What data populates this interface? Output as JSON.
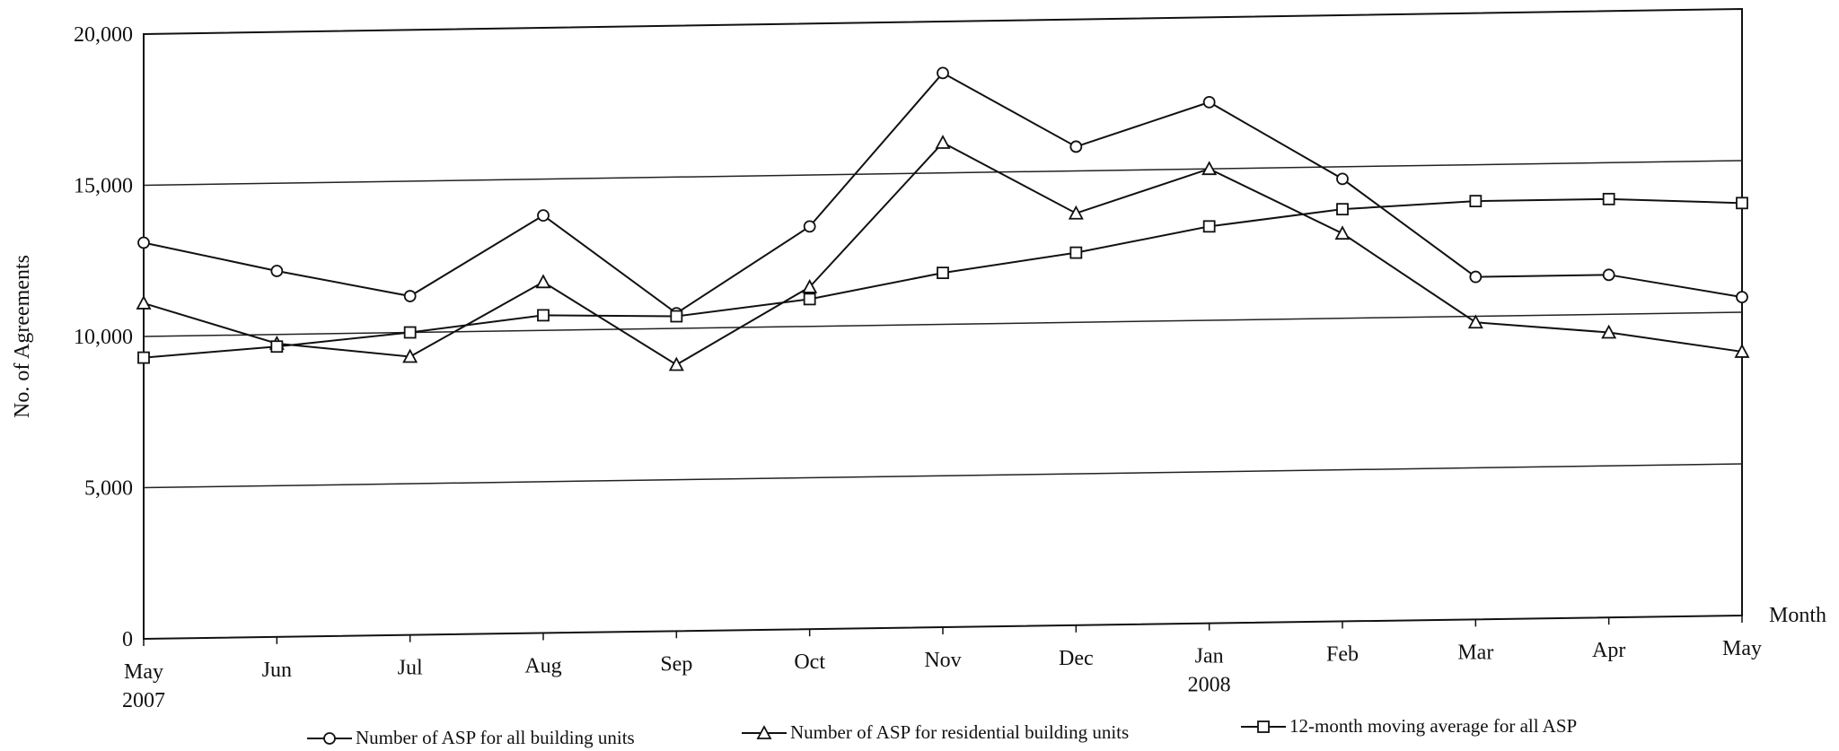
{
  "chart_data": {
    "type": "line",
    "title": "",
    "ylabel": "No. of Agreements",
    "xlabel": "Month",
    "categories": [
      "May",
      "Jun",
      "Jul",
      "Aug",
      "Sep",
      "Oct",
      "Nov",
      "Dec",
      "Jan",
      "Feb",
      "Mar",
      "Apr",
      "May"
    ],
    "year_labels": {
      "0": "2007",
      "8": "2008"
    },
    "ylim": [
      0,
      20000
    ],
    "yticks": [
      0,
      5000,
      10000,
      15000,
      20000
    ],
    "ytick_labels": [
      "0",
      "5,000",
      "10,000",
      "15,000",
      "20,000"
    ],
    "grid": true,
    "legend_position": "bottom",
    "series": [
      {
        "name": "Number of ASP for all building units",
        "marker": "circle",
        "values": [
          13100,
          12100,
          11200,
          13800,
          10500,
          13300,
          18300,
          15800,
          17200,
          14600,
          11300,
          11300,
          10500
        ]
      },
      {
        "name": "Number of ASP for residential building units",
        "marker": "triangle",
        "values": [
          11100,
          9700,
          9200,
          11600,
          8800,
          11300,
          16000,
          13600,
          15000,
          12800,
          9800,
          9400,
          8700
        ]
      },
      {
        "name": "12-month moving average for all ASP",
        "marker": "square",
        "values": [
          9300,
          9600,
          10000,
          10500,
          10400,
          10900,
          11700,
          12300,
          13100,
          13600,
          13800,
          13800,
          13600
        ]
      }
    ]
  }
}
